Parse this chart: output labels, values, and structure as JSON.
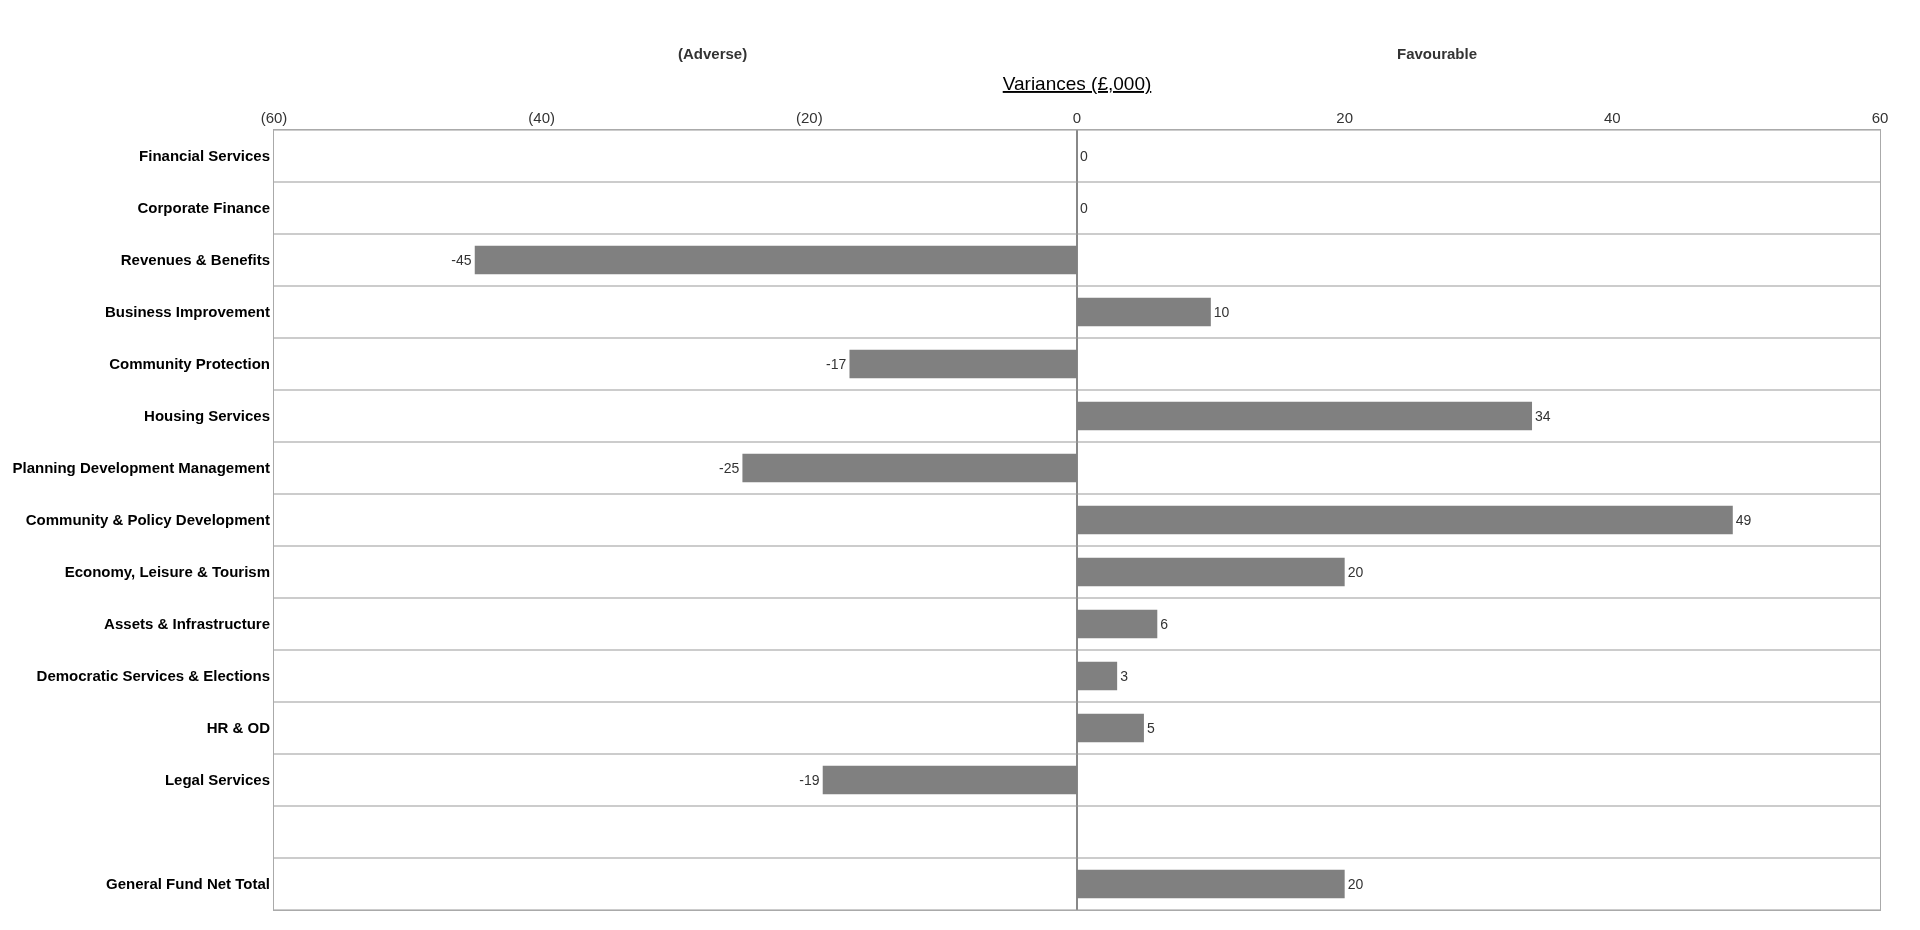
{
  "chart_data": {
    "type": "bar",
    "orientation": "horizontal",
    "title": "Variances (£,000)",
    "annotations": [
      "(Adverse)",
      "Favourable"
    ],
    "categories": [
      "Financial Services",
      "Corporate Finance",
      "Revenues & Benefits",
      "Business Improvement",
      "Community Protection",
      "Housing Services",
      "Planning Development Management",
      "Community & Policy Development",
      "Economy, Leisure & Tourism",
      "Assets & Infrastructure",
      "Democratic Services & Elections",
      "HR & OD",
      "Legal Services",
      null,
      "General Fund Net Total"
    ],
    "values": [
      0,
      0,
      -45,
      10,
      -17,
      34,
      -25,
      49,
      20,
      6,
      3,
      5,
      -19,
      null,
      20
    ],
    "color": "#808080",
    "xlim": [
      -60,
      60
    ],
    "xticks": [
      {
        "value": -60,
        "label": "(60)"
      },
      {
        "value": -40,
        "label": "(40)"
      },
      {
        "value": -20,
        "label": "(20)"
      },
      0,
      20,
      40,
      60
    ],
    "data_labels": true,
    "grid": "y"
  }
}
